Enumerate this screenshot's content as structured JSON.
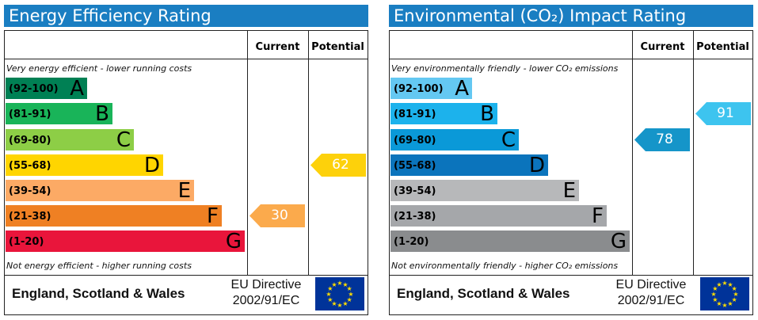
{
  "chart_data": [
    {
      "type": "bar",
      "title": "Energy Efficiency Rating",
      "columns": [
        "Current",
        "Potential"
      ],
      "top_note": "Very energy efficient - lower running costs",
      "bottom_note": "Not energy efficient - higher running costs",
      "categories": [
        "A",
        "B",
        "C",
        "D",
        "E",
        "F",
        "G"
      ],
      "ranges": [
        "(92-100)",
        "(81-91)",
        "(69-80)",
        "(55-68)",
        "(39-54)",
        "(21-38)",
        "(1-20)"
      ],
      "colors": [
        "#008054",
        "#19b459",
        "#8dce46",
        "#ffd500",
        "#fcaa65",
        "#ef8023",
        "#e9153b"
      ],
      "current": {
        "value": 30,
        "band": "F",
        "color": "#fbaa4c"
      },
      "potential": {
        "value": 62,
        "band": "D",
        "color": "#fdd10b"
      },
      "region": "England, Scotland & Wales",
      "directive": [
        "EU Directive",
        "2002/91/EC"
      ]
    },
    {
      "type": "bar",
      "title": "Environmental (CO₂) Impact Rating",
      "columns": [
        "Current",
        "Potential"
      ],
      "top_note": "Very environmentally friendly - lower CO₂ emissions",
      "bottom_note": "Not environmentally friendly - higher CO₂ emissions",
      "categories": [
        "A",
        "B",
        "C",
        "D",
        "E",
        "F",
        "G"
      ],
      "ranges": [
        "(92-100)",
        "(81-91)",
        "(69-80)",
        "(55-68)",
        "(39-54)",
        "(21-38)",
        "(1-20)"
      ],
      "colors": [
        "#64c8f2",
        "#1cb2ec",
        "#0a99d8",
        "#0b74bc",
        "#b7b8ba",
        "#a5a7aa",
        "#8a8c8e"
      ],
      "current": {
        "value": 78,
        "band": "C",
        "color": "#1595c9"
      },
      "potential": {
        "value": 91,
        "band": "B",
        "color": "#3dc4ef"
      },
      "region": "England, Scotland & Wales",
      "directive": [
        "EU Directive",
        "2002/91/EC"
      ]
    }
  ]
}
